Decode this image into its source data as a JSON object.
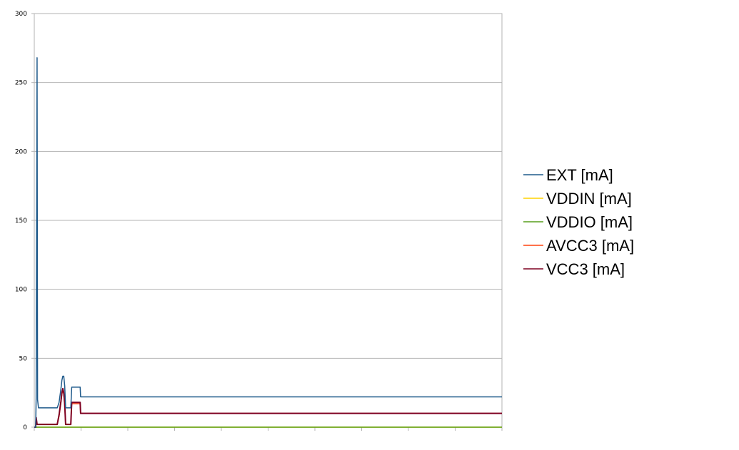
{
  "chart_data": {
    "type": "line",
    "title": "",
    "xlabel": "",
    "ylabel": "",
    "ylim": [
      0,
      300
    ],
    "yticks": [
      "0",
      "50",
      "100",
      "150",
      "200",
      "250",
      "300"
    ],
    "grid": true,
    "legend_position": "right",
    "x_count": 1000,
    "series": [
      {
        "name": "EXT [mA]",
        "color": "#1f5a8b",
        "points": [
          [
            0,
            0
          ],
          [
            3,
            0
          ],
          [
            4,
            21
          ],
          [
            6,
            268
          ],
          [
            7,
            20
          ],
          [
            9,
            14
          ],
          [
            49,
            14
          ],
          [
            53,
            18
          ],
          [
            57,
            28
          ],
          [
            59,
            34
          ],
          [
            61,
            37
          ],
          [
            63,
            37
          ],
          [
            65,
            30
          ],
          [
            67,
            14
          ],
          [
            78,
            14
          ],
          [
            80,
            29
          ],
          [
            98,
            29
          ],
          [
            99,
            22
          ],
          [
            999,
            22
          ]
        ]
      },
      {
        "name": "VDDIN [mA]",
        "color": "#ffd200",
        "points": [
          [
            0,
            0
          ],
          [
            999,
            0
          ]
        ]
      },
      {
        "name": "VDDIO [mA]",
        "color": "#579d1c",
        "points": [
          [
            0,
            0
          ],
          [
            999,
            0
          ]
        ]
      },
      {
        "name": "AVCC3 [mA]",
        "color": "#ff420e",
        "points": [
          [
            0,
            0
          ],
          [
            3,
            0
          ],
          [
            4,
            5
          ],
          [
            6,
            2
          ],
          [
            49,
            2
          ],
          [
            53,
            8
          ],
          [
            57,
            18
          ],
          [
            59,
            24
          ],
          [
            61,
            27
          ],
          [
            63,
            24
          ],
          [
            65,
            16
          ],
          [
            67,
            2
          ],
          [
            78,
            2
          ],
          [
            80,
            17
          ],
          [
            98,
            17
          ],
          [
            99,
            10
          ],
          [
            999,
            10
          ]
        ]
      },
      {
        "name": "VCC3 [mA]",
        "color": "#7e0021",
        "points": [
          [
            0,
            0
          ],
          [
            3,
            0
          ],
          [
            4,
            7
          ],
          [
            6,
            2
          ],
          [
            49,
            2
          ],
          [
            53,
            9
          ],
          [
            57,
            19
          ],
          [
            59,
            25
          ],
          [
            61,
            28
          ],
          [
            63,
            25
          ],
          [
            65,
            17
          ],
          [
            67,
            2
          ],
          [
            78,
            2
          ],
          [
            80,
            18
          ],
          [
            98,
            18
          ],
          [
            99,
            10
          ],
          [
            999,
            10
          ]
        ]
      }
    ]
  }
}
